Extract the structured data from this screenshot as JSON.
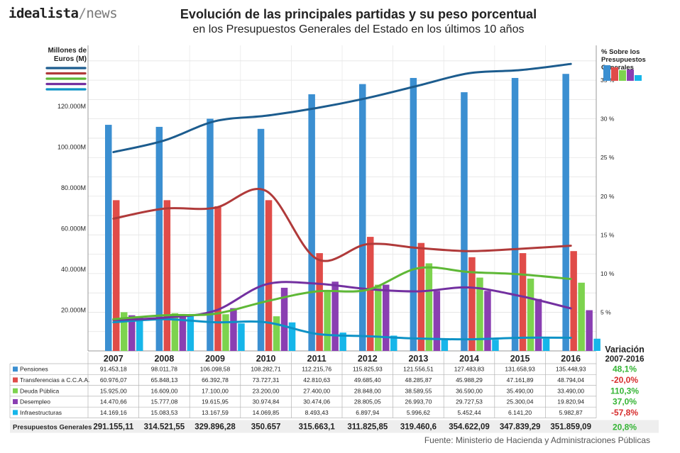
{
  "logo": {
    "brand": "idealista",
    "sep": "/",
    "section": "news"
  },
  "header": {
    "title": "Evolución de las principales partidas y su peso porcentual",
    "subtitle": "en los Presupuestos Generales del Estado en los últimos 10 años"
  },
  "source": "Fuente: Ministerio de Hacienda y Administraciones Públicas",
  "chart_data": {
    "type": "bar",
    "combined_with": "line",
    "title": "Evolución de las principales partidas y su peso porcentual",
    "subtitle": "en los Presupuestos Generales del Estado en los últimos 10 años",
    "ylabel_left": "Millones de Euros (M)",
    "ylabel_right": "% Sobre los Presupuestos Generales",
    "y_left_ticks": [
      "20.000M",
      "40.000M",
      "60.000M",
      "80.000M",
      "100.000M",
      "120.000M"
    ],
    "y_left_tick_values": [
      20000,
      40000,
      60000,
      80000,
      100000,
      120000
    ],
    "y_right_ticks": [
      "5 %",
      "10 %",
      "15 %",
      "20 %",
      "25 %",
      "30 %",
      "35 %"
    ],
    "y_right_tick_values": [
      5,
      10,
      15,
      20,
      25,
      30,
      35
    ],
    "ylim_left": [
      0,
      150000
    ],
    "ylim_right": [
      0,
      39.5
    ],
    "grid": true,
    "categories": [
      "2007",
      "2008",
      "2009",
      "2010",
      "2011",
      "2012",
      "2013",
      "2014",
      "2015",
      "2016"
    ],
    "series": [
      {
        "name": "Pensiones",
        "bar_color": "#3b8fd1",
        "line_color": "#1c5c8e",
        "values": [
          91453.18,
          98011.78,
          106098.58,
          108282.71,
          112215.76,
          115825.93,
          121556.51,
          127483.83,
          131658.93,
          135448.93
        ],
        "labels": [
          "91.453,18",
          "98.011,78",
          "106.098,58",
          "108.282,71",
          "112.215,76",
          "115.825,93",
          "121.556,51",
          "127.483,83",
          "131.658,93",
          "135.448,93"
        ],
        "variation": "48,1%"
      },
      {
        "name": "Transferencias a C.C.A.A.",
        "bar_color": "#e04c49",
        "line_color": "#b03a3a",
        "values": [
          60976.07,
          65848.13,
          66392.78,
          73727.31,
          42810.63,
          49685.4,
          48285.87,
          45988.29,
          47161.89,
          48794.04
        ],
        "labels": [
          "60.976,07",
          "65.848,13",
          "66.392,78",
          "73.727,31",
          "42.810,63",
          "49.685,40",
          "48.285,87",
          "45.988,29",
          "47.161,89",
          "48.794,04"
        ],
        "variation": "-20,0%"
      },
      {
        "name": "Deuda Pública",
        "bar_color": "#7dd34e",
        "line_color": "#5eb836",
        "values": [
          15925.0,
          16609.0,
          17100.0,
          23200.0,
          27400.0,
          28848.0,
          38589.55,
          36590.0,
          35490.0,
          33490.0
        ],
        "labels": [
          "15.925,00",
          "16.609,00",
          "17.100,00",
          "23.200,00",
          "27.400,00",
          "28.848,00",
          "38.589,55",
          "36.590,00",
          "35.490,00",
          "33.490,00"
        ],
        "variation": "110,3%"
      },
      {
        "name": "Desempleo",
        "bar_color": "#8a3fb2",
        "line_color": "#7330a0",
        "values": [
          14470.66,
          15777.08,
          19615.95,
          30974.84,
          30474.06,
          28805.05,
          26993.7,
          29727.53,
          25300.04,
          19820.94
        ],
        "labels": [
          "14.470,66",
          "15.777,08",
          "19.615,95",
          "30.974,84",
          "30.474,06",
          "28.805,05",
          "26.993,70",
          "29.727,53",
          "25.300,04",
          "19.820,94"
        ],
        "variation": "37,0%"
      },
      {
        "name": "Infraestructuras",
        "bar_color": "#16b6ea",
        "line_color": "#0d92c6",
        "values": [
          14169.16,
          15083.53,
          13167.59,
          14069.85,
          8493.43,
          6897.94,
          5996.62,
          5452.44,
          6141.2,
          5982.87
        ],
        "labels": [
          "14.169,16",
          "15.083,53",
          "13.167,59",
          "14.069,85",
          "8.493,43",
          "6.897,94",
          "5.996,62",
          "5.452,44",
          "6.141,20",
          "5.982,87"
        ],
        "variation": "-57,8%"
      }
    ],
    "bar_values_chart": {
      "Pensiones": [
        111000,
        110000,
        114000,
        109000,
        126000,
        131000,
        134000,
        127000,
        134000,
        136000
      ],
      "Transferencias a C.C.A.A.": [
        74000,
        74000,
        71000,
        74000,
        48000,
        56000,
        53000,
        46000,
        48000,
        49000
      ],
      "Deuda Pública": [
        19000,
        18500,
        18000,
        17000,
        29000,
        32500,
        43000,
        36000,
        35500,
        33500
      ],
      "Desempleo": [
        17500,
        18000,
        21000,
        31000,
        34000,
        32500,
        29500,
        29500,
        25500,
        20000
      ],
      "Infraestructuras": [
        17000,
        17000,
        13500,
        14000,
        9000,
        7500,
        6000,
        5500,
        6000,
        6000
      ]
    },
    "pct_lines": {
      "Pensiones": [
        25.7,
        27.2,
        29.7,
        30.4,
        31.4,
        32.7,
        34.3,
        35.9,
        36.3,
        37.1
      ],
      "Transferencias a C.C.A.A.": [
        17.1,
        18.4,
        18.5,
        20.7,
        11.9,
        13.8,
        13.3,
        12.9,
        13.2,
        13.6
      ],
      "Deuda Pública": [
        4.1,
        4.6,
        4.8,
        6.4,
        7.7,
        7.9,
        10.7,
        10.2,
        9.9,
        9.3
      ],
      "Desempleo": [
        4.0,
        4.3,
        5.2,
        8.6,
        8.7,
        8.0,
        7.7,
        8.2,
        7.1,
        5.5
      ],
      "Infraestructuras": [
        3.7,
        4.1,
        3.7,
        3.7,
        2.2,
        1.9,
        1.6,
        1.5,
        1.7,
        1.7
      ]
    },
    "table": {
      "variation_header": [
        "Variación",
        "2007-2016"
      ],
      "totals_label": "Presupuestos Generales",
      "totals": [
        "291.155,11",
        "314.521,55",
        "329.896,28",
        "350.657",
        "315.663,1",
        "311.825,85",
        "319.460,6",
        "354.622,09",
        "347.839,29",
        "351.859,09"
      ],
      "total_variation": "20,8%"
    }
  }
}
